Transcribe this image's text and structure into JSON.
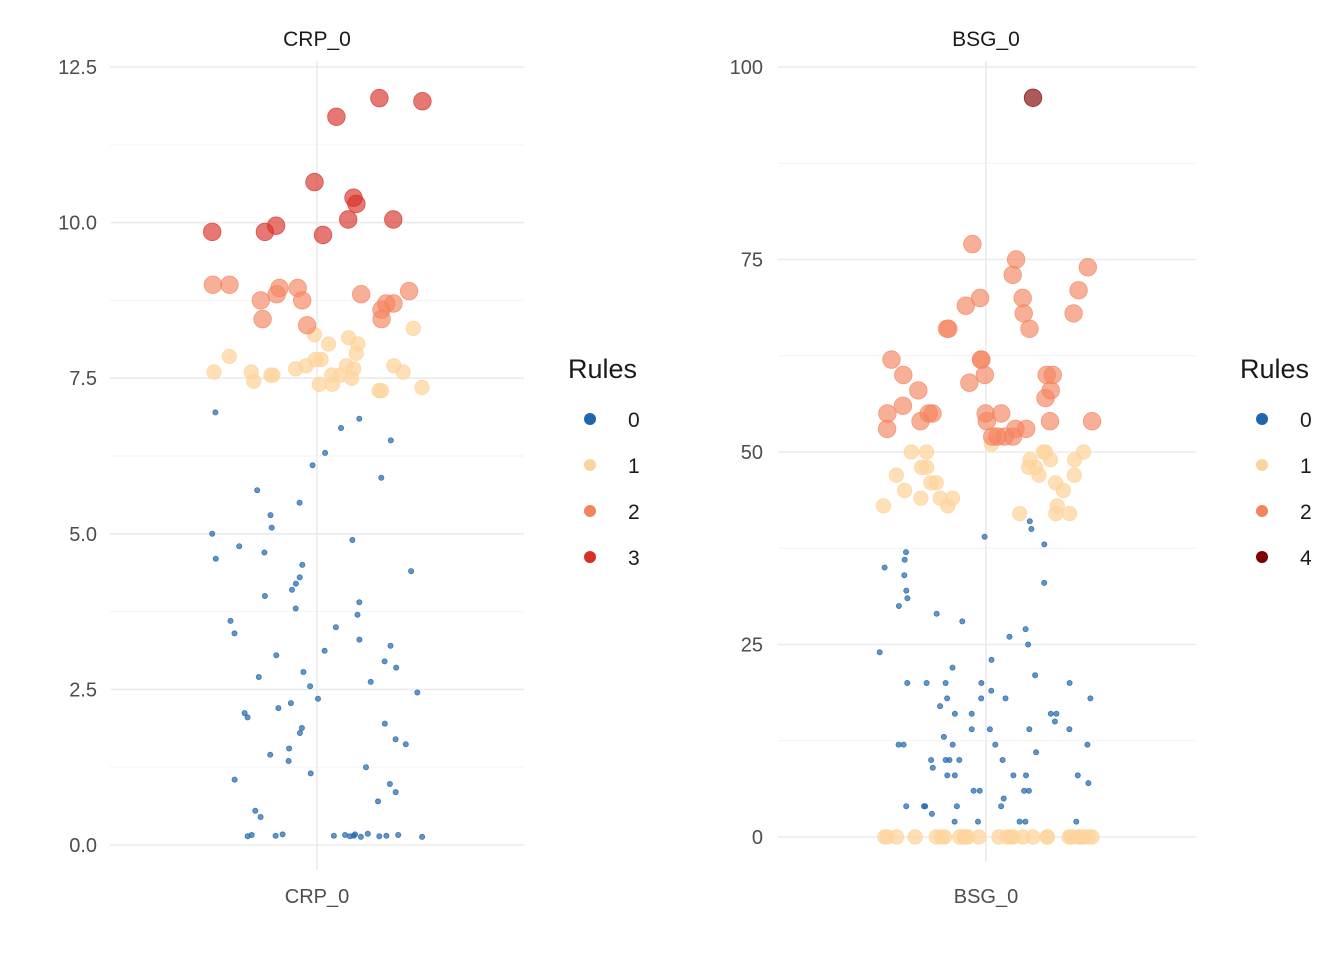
{
  "chart_data": [
    {
      "type": "scatter",
      "title": "CRP_0",
      "x_category": "CRP_0",
      "xlabel": "",
      "ylabel": "",
      "ylim": [
        0,
        12.5
      ],
      "y_ticks": [
        0.0,
        2.5,
        5.0,
        7.5,
        10.0,
        12.5
      ],
      "y_tick_labels": [
        "0.0",
        "2.5",
        "5.0",
        "7.5",
        "10.0",
        "12.5"
      ],
      "grid": true,
      "legend": {
        "title": "Rules",
        "position": "right",
        "entries": [
          {
            "label": "0",
            "color": "#2166ac"
          },
          {
            "label": "1",
            "color": "#fdd49e"
          },
          {
            "label": "2",
            "color": "#f4845f"
          },
          {
            "label": "3",
            "color": "#d73027"
          }
        ]
      },
      "series": [
        {
          "rule": "0",
          "color": "#2166ac",
          "size": "small",
          "y_values": [
            0.14,
            0.15,
            0.16,
            0.13,
            0.17,
            0.15,
            0.14,
            0.16,
            0.13,
            0.15,
            0.18,
            0.17,
            0.14,
            0.16,
            0.15,
            0.45,
            0.55,
            0.7,
            0.85,
            0.98,
            1.05,
            1.15,
            1.25,
            1.35,
            1.45,
            1.55,
            1.62,
            1.7,
            1.8,
            1.88,
            1.95,
            2.05,
            2.12,
            2.2,
            2.28,
            2.35,
            2.45,
            2.55,
            2.62,
            2.7,
            2.78,
            2.85,
            2.95,
            3.05,
            3.12,
            3.2,
            3.3,
            3.4,
            3.5,
            3.6,
            3.7,
            3.8,
            3.9,
            4.0,
            4.1,
            4.2,
            4.3,
            4.4,
            4.5,
            4.6,
            4.7,
            4.8,
            4.9,
            5.0,
            5.1,
            5.3,
            5.5,
            5.7,
            5.9,
            6.1,
            6.3,
            6.5,
            6.7,
            6.85,
            6.95
          ]
        },
        {
          "rule": "1",
          "color": "#fdd49e",
          "size": "medium",
          "y_values": [
            8.05,
            7.7,
            7.4,
            7.5,
            7.55,
            8.2,
            8.3,
            7.45,
            7.8,
            7.6,
            7.55,
            7.6,
            7.7,
            8.15,
            7.65,
            7.3,
            7.9,
            7.55,
            7.3,
            7.35,
            7.8,
            7.6,
            7.55,
            7.65,
            7.7,
            7.4,
            8.05,
            7.85
          ]
        },
        {
          "rule": "2",
          "color": "#f4845f",
          "size": "large",
          "y_values": [
            8.9,
            9.0,
            8.45,
            8.35,
            8.6,
            8.85,
            8.7,
            8.75,
            8.45,
            8.95,
            8.75,
            9.0,
            8.95,
            8.85,
            8.7
          ]
        },
        {
          "rule": "3",
          "color": "#d73027",
          "size": "large",
          "y_values": [
            12.0,
            11.95,
            11.7,
            10.05,
            9.95,
            9.85,
            9.85,
            9.8,
            10.05,
            10.3,
            10.4,
            10.65
          ]
        }
      ]
    },
    {
      "type": "scatter",
      "title": "BSG_0",
      "x_category": "BSG_0",
      "xlabel": "",
      "ylabel": "",
      "ylim": [
        0,
        100
      ],
      "y_ticks": [
        0,
        25,
        50,
        75,
        100
      ],
      "y_tick_labels": [
        "0",
        "25",
        "50",
        "75",
        "100"
      ],
      "grid": true,
      "legend": {
        "title": "Rules",
        "position": "right",
        "entries": [
          {
            "label": "0",
            "color": "#2166ac"
          },
          {
            "label": "1",
            "color": "#fdd49e"
          },
          {
            "label": "2",
            "color": "#f4845f"
          },
          {
            "label": "4",
            "color": "#7f0000"
          }
        ]
      },
      "series": [
        {
          "rule": "0",
          "color": "#2166ac",
          "size": "small",
          "y_values": [
            2,
            2,
            2,
            4,
            4,
            4,
            6,
            6,
            8,
            8,
            8,
            10,
            10,
            10,
            12,
            12,
            12,
            14,
            14,
            16,
            16,
            18,
            18,
            20,
            20,
            20,
            22,
            24,
            26,
            28,
            30,
            32,
            34,
            36,
            38,
            40,
            41,
            2,
            4,
            6,
            8,
            10,
            12,
            14,
            16,
            18,
            20,
            3,
            5,
            7,
            9,
            11,
            13,
            15,
            17,
            19,
            21,
            23,
            25,
            27,
            29,
            31,
            33,
            35,
            37,
            39,
            2,
            4,
            6,
            8,
            10,
            12,
            14,
            16,
            18,
            20
          ]
        },
        {
          "rule": "1",
          "color": "#fdd49e",
          "size": "medium",
          "y_values": [
            0,
            0,
            0,
            0,
            0,
            0,
            0,
            0,
            0,
            0,
            0,
            0,
            0,
            0,
            0,
            0,
            0,
            0,
            0,
            0,
            0,
            0,
            0,
            0,
            0,
            0,
            0,
            0,
            0,
            0,
            49,
            47,
            43,
            42,
            44,
            46,
            48,
            50,
            51,
            42,
            48,
            45,
            50,
            47,
            49,
            46,
            43,
            45,
            50,
            48,
            49,
            44,
            43,
            42,
            50,
            48,
            50,
            47,
            46,
            44
          ]
        },
        {
          "rule": "2",
          "color": "#f4845f",
          "size": "large",
          "y_values": [
            62,
            60,
            62,
            66,
            52,
            68,
            58,
            53,
            55,
            60,
            55,
            53,
            55,
            56,
            60,
            77,
            75,
            73,
            66,
            60,
            52,
            52,
            57,
            59,
            55,
            54,
            54,
            58,
            55,
            54,
            70,
            71,
            69,
            70,
            74,
            68,
            62,
            53,
            52,
            54,
            66
          ]
        },
        {
          "rule": "4",
          "color": "#7f0000",
          "size": "large",
          "y_values": [
            96
          ]
        }
      ]
    }
  ]
}
